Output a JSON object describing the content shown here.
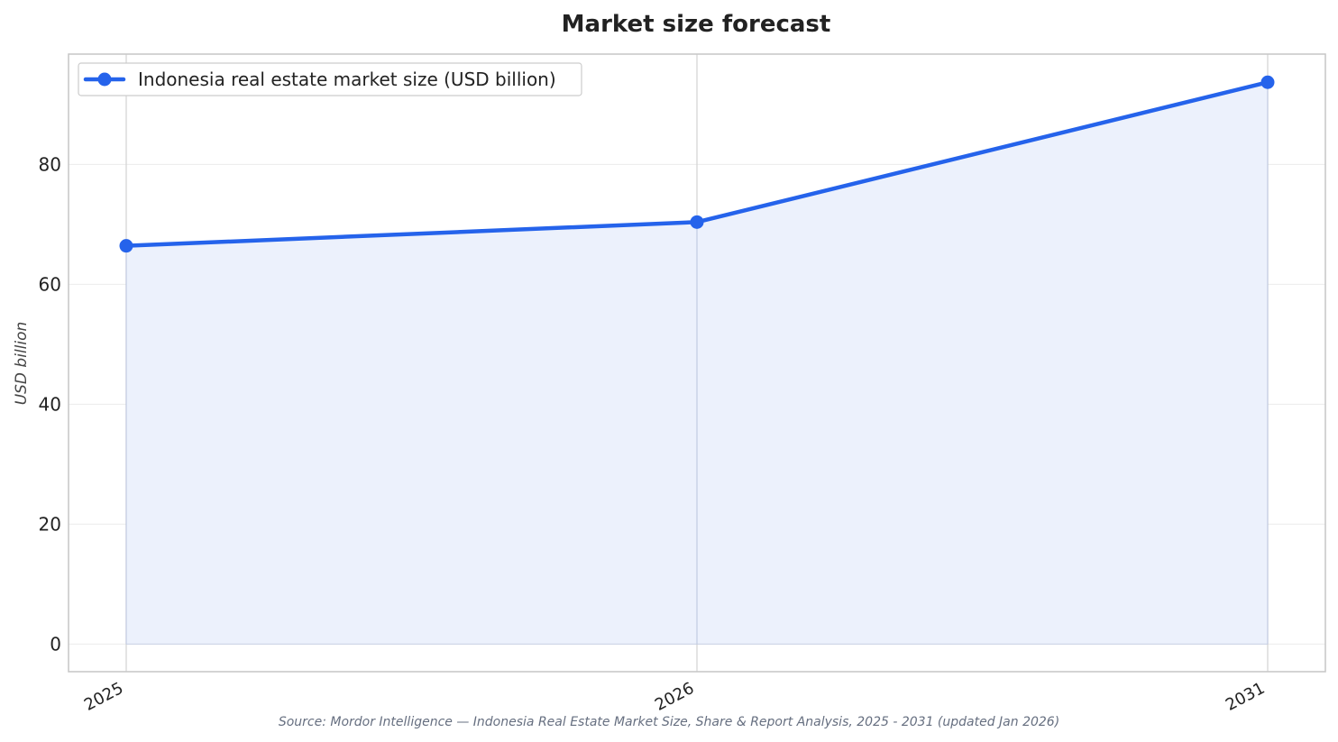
{
  "chart_data": {
    "type": "line",
    "title": "Market size forecast",
    "x": [
      "2025",
      "2026",
      "2031"
    ],
    "series": [
      {
        "name": "Indonesia real estate market size (USD billion)",
        "values": [
          66.42,
          70.38,
          93.7
        ]
      }
    ],
    "xlabel": "",
    "ylabel": "USD billion",
    "ylim": [
      -4.6,
      98.4
    ],
    "yticks": [
      0,
      20,
      40,
      60,
      80
    ],
    "grid": true,
    "area_fill": true,
    "legend_position": "top-left",
    "line_color": "#2563eb",
    "fill_color": "#ecf1fc",
    "source": "Source: Mordor Intelligence — Indonesia Real Estate Market Size, Share & Report Analysis, 2025 - 2031 (updated Jan 2026)"
  }
}
